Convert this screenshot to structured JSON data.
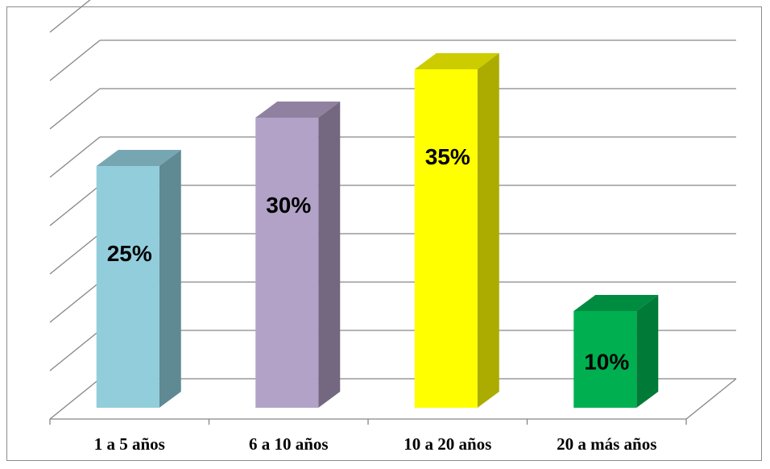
{
  "chart_data": {
    "type": "bar",
    "style": "3d-column",
    "categories": [
      "1 a 5 años",
      "6 a 10 años",
      "10 a 20 años",
      "20 a más años"
    ],
    "values": [
      25,
      30,
      35,
      10
    ],
    "data_labels": [
      "25%",
      "30%",
      "35%",
      "10%"
    ],
    "ylim": [
      0,
      40
    ],
    "grid": true,
    "legend": "none",
    "colors": {
      "front": [
        "#92CDDC",
        "#B3A2C7",
        "#FFFF00",
        "#00B050"
      ],
      "side": [
        "#5F8A93",
        "#746780",
        "#ABAB00",
        "#007A37"
      ],
      "top": [
        "#76A6B1",
        "#8F819F",
        "#CCCC00",
        "#008C40"
      ],
      "grid": "#868686",
      "axis": "#868686"
    }
  }
}
